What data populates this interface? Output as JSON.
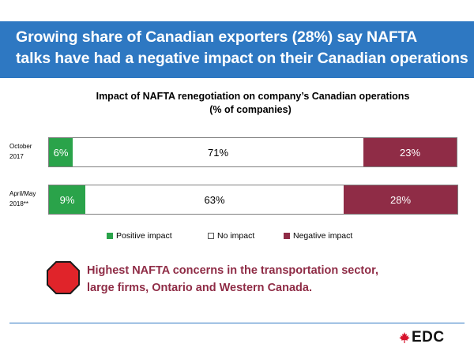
{
  "header": {
    "title_line1": "Growing share of Canadian exporters (28%) say NAFTA",
    "title_line2": "talks have had a negative impact on their Canadian operations"
  },
  "chart_data": {
    "type": "bar",
    "orientation": "horizontal",
    "stacked": true,
    "title": "Impact of NAFTA renegotiation on company’s Canadian operations",
    "subtitle": "(% of companies)",
    "categories": [
      {
        "line1": "October",
        "line2": "2017"
      },
      {
        "line1": "April/May",
        "line2": "2018**"
      }
    ],
    "series": [
      {
        "name": "Positive impact",
        "values": [
          6,
          9
        ],
        "labels": [
          "6%",
          "9%"
        ]
      },
      {
        "name": "No impact",
        "values": [
          71,
          63
        ],
        "labels": [
          "71%",
          "63%"
        ]
      },
      {
        "name": "Negative impact",
        "values": [
          23,
          28
        ],
        "labels": [
          "23%",
          "28%"
        ]
      }
    ],
    "xlim": [
      0,
      100
    ],
    "legend_position": "bottom",
    "colors": {
      "Positive impact": "#2aa34a",
      "No impact": "#ffffff",
      "Negative impact": "#8f2c46"
    }
  },
  "callout": {
    "line1": "Highest NAFTA concerns in the transportation sector,",
    "line2": "large firms, Ontario and Western Canada.",
    "icon": "stop-sign-icon",
    "color": "#8f2c46"
  },
  "logo": {
    "text": "EDC",
    "icon": "maple-leaf-icon",
    "accent": "#d7142c"
  },
  "colors": {
    "header_bg": "#2e78c2",
    "rule": "#2e78c2"
  }
}
